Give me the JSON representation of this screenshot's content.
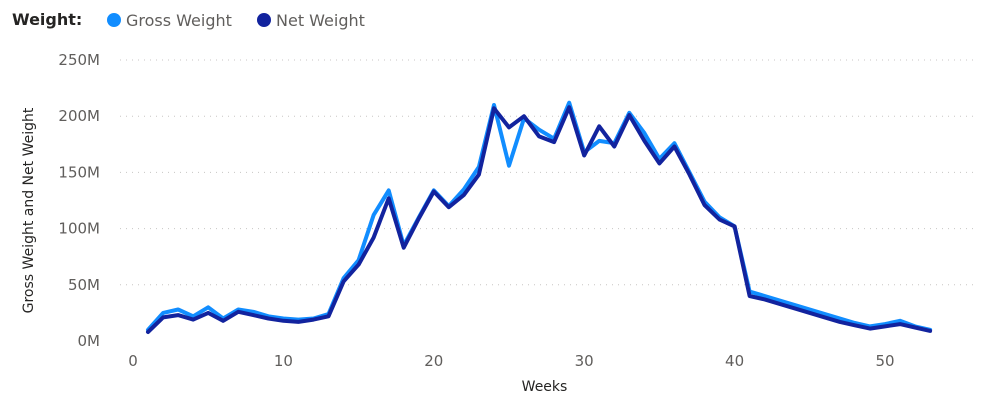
{
  "legend": {
    "title": "Weight:"
  },
  "chart_data": {
    "type": "line",
    "title": "",
    "legend_position": "top-left",
    "xlabel": "Weeks",
    "ylabel": "Gross Weight and Net Weight",
    "xlim": [
      0,
      53
    ],
    "ylim": [
      0,
      250000000
    ],
    "x_ticks": [
      0,
      10,
      20,
      30,
      40,
      50
    ],
    "x_tick_labels": [
      "0",
      "10",
      "20",
      "30",
      "40",
      "50"
    ],
    "y_ticks": [
      0,
      50000000,
      100000000,
      150000000,
      200000000,
      250000000
    ],
    "y_tick_labels": [
      "0M",
      "50M",
      "100M",
      "150M",
      "200M",
      "250M"
    ],
    "grid": true,
    "x": [
      1,
      2,
      3,
      4,
      5,
      6,
      7,
      8,
      9,
      10,
      11,
      12,
      13,
      14,
      15,
      16,
      17,
      18,
      19,
      20,
      21,
      22,
      23,
      24,
      25,
      26,
      27,
      28,
      29,
      30,
      31,
      32,
      33,
      34,
      35,
      36,
      37,
      38,
      39,
      40,
      41,
      42,
      43,
      44,
      45,
      46,
      47,
      48,
      49,
      50,
      51,
      52,
      53
    ],
    "series": [
      {
        "name": "Gross Weight",
        "color": "#118dff",
        "values": [
          10,
          25,
          28,
          22,
          30,
          20,
          28,
          26,
          22,
          20,
          19,
          20,
          24,
          56,
          72,
          112,
          134,
          85,
          110,
          134,
          120,
          135,
          155,
          210,
          156,
          198,
          188,
          180,
          212,
          168,
          178,
          176,
          203,
          185,
          162,
          176,
          150,
          124,
          110,
          102,
          44,
          40,
          36,
          32,
          28,
          24,
          20,
          16,
          13,
          15,
          18,
          13,
          10
        ]
      },
      {
        "name": "Net Weight",
        "color": "#12239e",
        "values": [
          8,
          21,
          23,
          19,
          25,
          18,
          26,
          23,
          20,
          18,
          17,
          19,
          22,
          53,
          68,
          92,
          127,
          83,
          109,
          133,
          119,
          130,
          148,
          207,
          190,
          200,
          182,
          177,
          208,
          165,
          191,
          173,
          201,
          178,
          158,
          173,
          148,
          121,
          108,
          102,
          40,
          37,
          33,
          29,
          25,
          21,
          17,
          14,
          11,
          13,
          15,
          12,
          9
        ]
      }
    ],
    "value_unit_note": "values in millions"
  }
}
